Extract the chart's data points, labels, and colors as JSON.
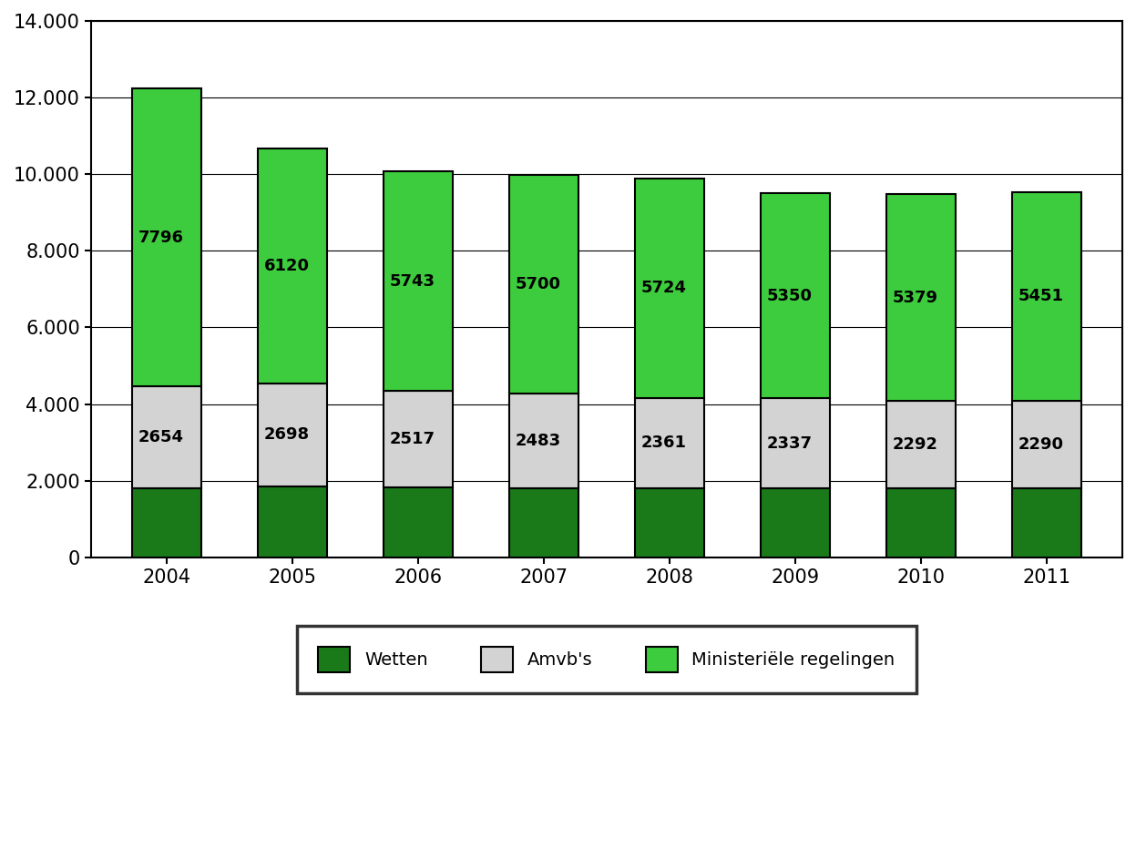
{
  "years": [
    "2004",
    "2005",
    "2006",
    "2007",
    "2008",
    "2009",
    "2010",
    "2011"
  ],
  "wetten": [
    1800,
    1850,
    1820,
    1800,
    1800,
    1810,
    1800,
    1800
  ],
  "amvbs": [
    2654,
    2698,
    2517,
    2483,
    2361,
    2337,
    2292,
    2290
  ],
  "ministeriele": [
    7796,
    6120,
    5743,
    5700,
    5724,
    5350,
    5379,
    5451
  ],
  "color_wetten": "#1a7a1a",
  "color_amvbs": "#d3d3d3",
  "color_ministeriele": "#3dcc3d",
  "legend_wetten": "Wetten",
  "legend_amvbs": "Amvb's",
  "legend_ministeriele": "Ministeriële regelingen",
  "ylim": [
    0,
    14000
  ],
  "yticks": [
    0,
    2000,
    4000,
    6000,
    8000,
    10000,
    12000,
    14000
  ],
  "ytick_labels": [
    "0",
    "2.000",
    "4.000",
    "6.000",
    "8.000",
    "10.000",
    "12.000",
    "14.000"
  ],
  "bar_width": 0.55,
  "edgecolor": "#000000",
  "background_color": "#ffffff",
  "label_fontsize": 13,
  "tick_fontsize": 15,
  "legend_fontsize": 14
}
